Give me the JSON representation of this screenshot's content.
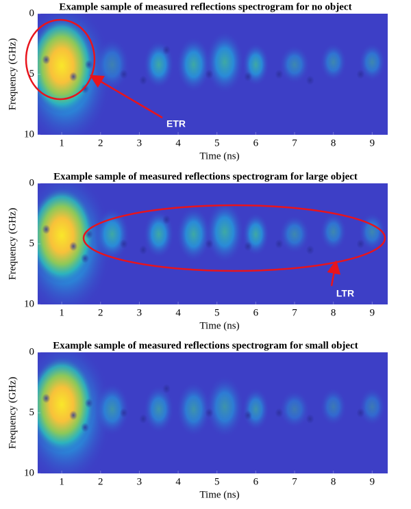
{
  "chart_data": [
    {
      "type": "heatmap",
      "title": "Example sample of measured reflections spectrogram for no object",
      "xlabel": "Time (ns)",
      "ylabel": "Frequency (GHz)",
      "xlim": [
        0.38,
        9.4
      ],
      "ylim": [
        0,
        10
      ],
      "y_direction": "reverse",
      "xticks": [
        1,
        2,
        3,
        4,
        5,
        6,
        7,
        8,
        9
      ],
      "yticks": [
        0,
        5,
        10
      ],
      "annotations": [
        "ETR"
      ]
    },
    {
      "type": "heatmap",
      "title": "Example sample of measured reflections spectrogram for large object",
      "xlabel": "Time (ns)",
      "ylabel": "Frequency (GHz)",
      "xlim": [
        0.38,
        9.4
      ],
      "ylim": [
        0,
        10
      ],
      "y_direction": "reverse",
      "xticks": [
        1,
        2,
        3,
        4,
        5,
        6,
        7,
        8,
        9
      ],
      "yticks": [
        0,
        5,
        10
      ],
      "annotations": [
        "LTR"
      ]
    },
    {
      "type": "heatmap",
      "title": "Example sample of measured reflections spectrogram for small object",
      "xlabel": "Time (ns)",
      "ylabel": "Frequency (GHz)",
      "xlim": [
        0.38,
        9.4
      ],
      "ylim": [
        0,
        10
      ],
      "y_direction": "reverse",
      "xticks": [
        1,
        2,
        3,
        4,
        5,
        6,
        7,
        8,
        9
      ],
      "yticks": [
        0,
        5,
        10
      ],
      "annotations": []
    }
  ]
}
